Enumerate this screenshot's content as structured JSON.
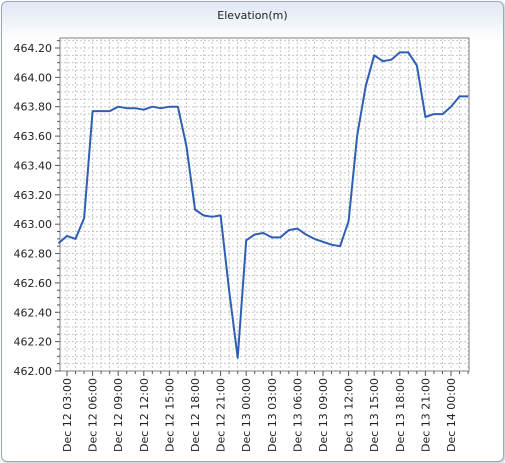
{
  "chart_data": {
    "type": "line",
    "title": "Elevation(m)",
    "xlabel": "",
    "ylabel": "",
    "ylim": [
      462.0,
      464.3
    ],
    "y_ticks": [
      "464.20",
      "464.00",
      "463.80",
      "463.60",
      "463.40",
      "463.20",
      "463.00",
      "462.80",
      "462.60",
      "462.40",
      "462.20",
      "462.00"
    ],
    "x_tick_labels": [
      "Dec 12 03:00",
      "Dec 12 06:00",
      "Dec 12 09:00",
      "Dec 12 12:00",
      "Dec 12 15:00",
      "Dec 12 18:00",
      "Dec 12 21:00",
      "Dec 13 00:00",
      "Dec 13 03:00",
      "Dec 13 06:00",
      "Dec 13 09:00",
      "Dec 13 12:00",
      "Dec 13 15:00",
      "Dec 13 18:00",
      "Dec 13 21:00",
      "Dec 14 00:00"
    ],
    "grid": true,
    "line_color": "#2f5fb3",
    "series": [
      {
        "x": [
          "Dec 12 02:00",
          "Dec 12 03:00",
          "Dec 12 04:00",
          "Dec 12 05:00",
          "Dec 12 06:00",
          "Dec 12 07:00",
          "Dec 12 08:00",
          "Dec 12 09:00",
          "Dec 12 10:00",
          "Dec 12 11:00",
          "Dec 12 12:00",
          "Dec 12 13:00",
          "Dec 12 14:00",
          "Dec 12 15:00",
          "Dec 12 16:00",
          "Dec 12 17:00",
          "Dec 12 18:00",
          "Dec 12 19:00",
          "Dec 12 20:00",
          "Dec 12 21:00",
          "Dec 12 22:00",
          "Dec 12 23:00",
          "Dec 13 00:00",
          "Dec 13 01:00",
          "Dec 13 02:00",
          "Dec 13 03:00",
          "Dec 13 04:00",
          "Dec 13 05:00",
          "Dec 13 06:00",
          "Dec 13 07:00",
          "Dec 13 08:00",
          "Dec 13 09:00",
          "Dec 13 10:00",
          "Dec 13 11:00",
          "Dec 13 12:00",
          "Dec 13 13:00",
          "Dec 13 14:00",
          "Dec 13 15:00",
          "Dec 13 16:00",
          "Dec 13 17:00",
          "Dec 13 18:00",
          "Dec 13 19:00",
          "Dec 13 20:00",
          "Dec 13 21:00",
          "Dec 13 22:00",
          "Dec 13 23:00",
          "Dec 14 00:00",
          "Dec 14 01:00",
          "Dec 14 02:00"
        ],
        "values": [
          462.87,
          462.92,
          462.9,
          463.04,
          463.77,
          463.77,
          463.77,
          463.8,
          463.79,
          463.79,
          463.78,
          463.8,
          463.79,
          463.8,
          463.8,
          463.53,
          463.1,
          463.06,
          463.05,
          463.06,
          462.55,
          462.09,
          462.89,
          462.93,
          462.94,
          462.91,
          462.91,
          462.96,
          462.97,
          462.93,
          462.9,
          462.88,
          462.86,
          462.85,
          463.02,
          463.6,
          463.94,
          464.15,
          464.11,
          464.12,
          464.17,
          464.17,
          464.08,
          463.73,
          463.75,
          463.75,
          463.8,
          463.87,
          463.87
        ]
      }
    ]
  }
}
